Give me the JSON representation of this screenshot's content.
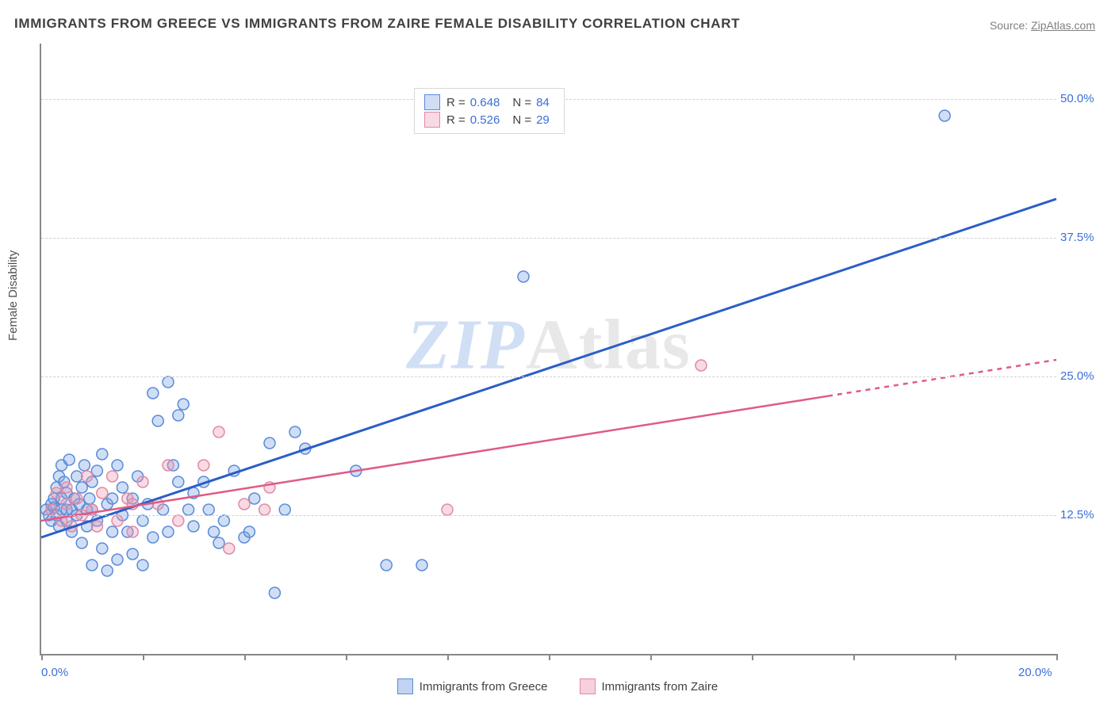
{
  "title": "IMMIGRANTS FROM GREECE VS IMMIGRANTS FROM ZAIRE FEMALE DISABILITY CORRELATION CHART",
  "source_prefix": "Source: ",
  "source_name": "ZipAtlas.com",
  "y_axis_label": "Female Disability",
  "watermark_a": "ZIP",
  "watermark_b": "Atlas",
  "chart": {
    "type": "scatter",
    "xlim": [
      0.0,
      20.0
    ],
    "ylim": [
      0.0,
      55.0
    ],
    "y_ticks": [
      12.5,
      25.0,
      37.5,
      50.0
    ],
    "y_tick_labels": [
      "12.5%",
      "25.0%",
      "37.5%",
      "50.0%"
    ],
    "x_ticks": [
      0,
      2,
      4,
      6,
      8,
      10,
      12,
      14,
      16,
      18,
      20
    ],
    "x_tick_labels_shown": {
      "0": "0.0%",
      "20": "20.0%"
    },
    "background_color": "#ffffff",
    "grid_color": "#d0d0d0",
    "axis_color": "#888888",
    "tick_label_color": "#3a6fd8",
    "title_fontsize": 17,
    "label_fontsize": 15,
    "marker_radius": 7,
    "marker_stroke_width": 1.5,
    "series": [
      {
        "name": "Immigrants from Greece",
        "fill": "rgba(120,160,225,0.35)",
        "stroke": "#5a8cd8",
        "line_color": "#2a5ec8",
        "line_width": 3,
        "R": 0.648,
        "N": 84,
        "trend": {
          "x1": 0.0,
          "y1": 10.5,
          "x2": 20.0,
          "y2": 41.0,
          "x_data_max": 20.0
        },
        "points": [
          [
            0.1,
            13.0
          ],
          [
            0.15,
            12.5
          ],
          [
            0.2,
            13.5
          ],
          [
            0.2,
            12.0
          ],
          [
            0.25,
            13.2
          ],
          [
            0.25,
            14.0
          ],
          [
            0.3,
            12.5
          ],
          [
            0.3,
            15.0
          ],
          [
            0.35,
            16.0
          ],
          [
            0.35,
            11.5
          ],
          [
            0.4,
            13.0
          ],
          [
            0.4,
            14.0
          ],
          [
            0.4,
            17.0
          ],
          [
            0.45,
            15.5
          ],
          [
            0.5,
            13.0
          ],
          [
            0.5,
            12.0
          ],
          [
            0.5,
            14.5
          ],
          [
            0.55,
            17.5
          ],
          [
            0.6,
            13.0
          ],
          [
            0.6,
            11.0
          ],
          [
            0.65,
            14.0
          ],
          [
            0.7,
            16.0
          ],
          [
            0.7,
            12.5
          ],
          [
            0.75,
            13.5
          ],
          [
            0.8,
            15.0
          ],
          [
            0.8,
            10.0
          ],
          [
            0.85,
            17.0
          ],
          [
            0.9,
            13.0
          ],
          [
            0.9,
            11.5
          ],
          [
            0.95,
            14.0
          ],
          [
            1.0,
            13.0
          ],
          [
            1.0,
            15.5
          ],
          [
            1.0,
            8.0
          ],
          [
            1.1,
            12.0
          ],
          [
            1.1,
            16.5
          ],
          [
            1.2,
            9.5
          ],
          [
            1.2,
            18.0
          ],
          [
            1.3,
            13.5
          ],
          [
            1.3,
            7.5
          ],
          [
            1.4,
            14.0
          ],
          [
            1.4,
            11.0
          ],
          [
            1.5,
            17.0
          ],
          [
            1.5,
            8.5
          ],
          [
            1.6,
            12.5
          ],
          [
            1.6,
            15.0
          ],
          [
            1.7,
            11.0
          ],
          [
            1.8,
            9.0
          ],
          [
            1.8,
            14.0
          ],
          [
            1.9,
            16.0
          ],
          [
            2.0,
            12.0
          ],
          [
            2.0,
            8.0
          ],
          [
            2.1,
            13.5
          ],
          [
            2.2,
            23.5
          ],
          [
            2.2,
            10.5
          ],
          [
            2.3,
            21.0
          ],
          [
            2.4,
            13.0
          ],
          [
            2.5,
            24.5
          ],
          [
            2.5,
            11.0
          ],
          [
            2.6,
            17.0
          ],
          [
            2.7,
            21.5
          ],
          [
            2.7,
            15.5
          ],
          [
            2.8,
            22.5
          ],
          [
            2.9,
            13.0
          ],
          [
            3.0,
            11.5
          ],
          [
            3.0,
            14.5
          ],
          [
            3.2,
            15.5
          ],
          [
            3.3,
            13.0
          ],
          [
            3.4,
            11.0
          ],
          [
            3.5,
            10.0
          ],
          [
            3.6,
            12.0
          ],
          [
            3.8,
            16.5
          ],
          [
            4.0,
            10.5
          ],
          [
            4.1,
            11.0
          ],
          [
            4.2,
            14.0
          ],
          [
            4.5,
            19.0
          ],
          [
            4.6,
            5.5
          ],
          [
            4.8,
            13.0
          ],
          [
            5.0,
            20.0
          ],
          [
            5.2,
            18.5
          ],
          [
            6.2,
            16.5
          ],
          [
            6.8,
            8.0
          ],
          [
            7.5,
            8.0
          ],
          [
            9.5,
            34.0
          ],
          [
            17.8,
            48.5
          ]
        ]
      },
      {
        "name": "Immigrants from Zaire",
        "fill": "rgba(235,150,175,0.35)",
        "stroke": "#e08aa5",
        "line_color": "#e05a85",
        "line_width": 2.5,
        "R": 0.526,
        "N": 29,
        "trend": {
          "x1": 0.0,
          "y1": 12.0,
          "x2": 20.0,
          "y2": 26.5,
          "x_data_max": 15.5
        },
        "points": [
          [
            0.2,
            13.0
          ],
          [
            0.3,
            14.5
          ],
          [
            0.4,
            12.0
          ],
          [
            0.5,
            13.5
          ],
          [
            0.5,
            15.0
          ],
          [
            0.6,
            11.5
          ],
          [
            0.7,
            14.0
          ],
          [
            0.8,
            12.5
          ],
          [
            0.9,
            16.0
          ],
          [
            1.0,
            13.0
          ],
          [
            1.1,
            11.5
          ],
          [
            1.2,
            14.5
          ],
          [
            1.4,
            16.0
          ],
          [
            1.5,
            12.0
          ],
          [
            1.7,
            14.0
          ],
          [
            1.8,
            11.0
          ],
          [
            1.8,
            13.5
          ],
          [
            2.0,
            15.5
          ],
          [
            2.3,
            13.5
          ],
          [
            2.5,
            17.0
          ],
          [
            2.7,
            12.0
          ],
          [
            3.2,
            17.0
          ],
          [
            3.5,
            20.0
          ],
          [
            3.7,
            9.5
          ],
          [
            4.0,
            13.5
          ],
          [
            4.4,
            13.0
          ],
          [
            4.5,
            15.0
          ],
          [
            8.0,
            13.0
          ],
          [
            13.0,
            26.0
          ]
        ]
      }
    ]
  },
  "legend_bottom": [
    {
      "label": "Immigrants from Greece",
      "fill": "rgba(120,160,225,0.45)",
      "stroke": "#5a8cd8"
    },
    {
      "label": "Immigrants from Zaire",
      "fill": "rgba(235,150,175,0.45)",
      "stroke": "#e08aa5"
    }
  ],
  "legend_top": {
    "r_label": "R =",
    "n_label": "N ="
  }
}
